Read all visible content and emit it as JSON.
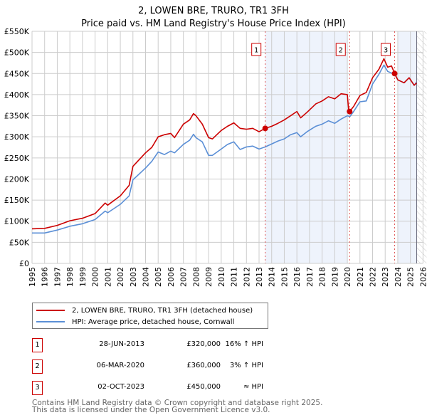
{
  "title": "2, LOWEN BRE, TRURO, TR1 3FH",
  "subtitle": "Price paid vs. HM Land Registry's House Price Index (HPI)",
  "chart_data": {
    "type": "line",
    "title": "2, LOWEN BRE, TRURO, TR1 3FH",
    "subtitle": "Price paid vs. HM Land Registry's House Price Index (HPI)",
    "xlim": [
      1995,
      2026
    ],
    "ylim": [
      0,
      550000
    ],
    "y_ticks": [
      0,
      50000,
      100000,
      150000,
      200000,
      250000,
      300000,
      350000,
      400000,
      450000,
      500000,
      550000
    ],
    "y_tick_labels": [
      "£0",
      "£50K",
      "£100K",
      "£150K",
      "£200K",
      "£250K",
      "£300K",
      "£350K",
      "£400K",
      "£450K",
      "£500K",
      "£550K"
    ],
    "x_ticks": [
      1995,
      1996,
      1997,
      1998,
      1999,
      2000,
      2001,
      2002,
      2003,
      2004,
      2005,
      2006,
      2007,
      2008,
      2009,
      2010,
      2011,
      2012,
      2013,
      2014,
      2015,
      2016,
      2017,
      2018,
      2019,
      2020,
      2021,
      2022,
      2023,
      2024,
      2025,
      2026
    ],
    "grid": true,
    "shaded_ranges": [
      [
        2013.49,
        2020.0
      ],
      [
        2024.0,
        2025.5
      ]
    ],
    "hatched_range": [
      2025.5,
      2026
    ],
    "series": [
      {
        "name": "2, LOWEN BRE, TRURO, TR1 3FH (detached house)",
        "color": "#cc0000",
        "x": [
          1995,
          1996,
          1997,
          1998,
          1999,
          2000,
          2000.8,
          2001,
          2002,
          2002.7,
          2003,
          2004,
          2004.5,
          2005,
          2005.5,
          2006,
          2006.3,
          2007,
          2007.5,
          2007.8,
          2008,
          2008.5,
          2009,
          2009.3,
          2010,
          2010.5,
          2011,
          2011.5,
          2012,
          2012.5,
          2013,
          2013.49,
          2014,
          2014.5,
          2015,
          2015.5,
          2016,
          2016.3,
          2016.8,
          2017.5,
          2018,
          2018.5,
          2019,
          2019.5,
          2020.0,
          2020.1,
          2020.18,
          2020.5,
          2021,
          2021.5,
          2022,
          2022.5,
          2022.9,
          2023.2,
          2023.5,
          2023.75,
          2024,
          2024.5,
          2024.9,
          2025.3,
          2025.5
        ],
        "y": [
          82000,
          83000,
          90000,
          101000,
          107000,
          118000,
          143000,
          138000,
          160000,
          185000,
          230000,
          262000,
          275000,
          300000,
          305000,
          308000,
          298000,
          330000,
          340000,
          355000,
          350000,
          330000,
          298000,
          295000,
          315000,
          325000,
          333000,
          320000,
          318000,
          320000,
          312000,
          320000,
          325000,
          332000,
          340000,
          350000,
          360000,
          345000,
          358000,
          378000,
          385000,
          395000,
          390000,
          402000,
          400000,
          365000,
          360000,
          372000,
          398000,
          405000,
          440000,
          460000,
          485000,
          465000,
          468000,
          450000,
          435000,
          428000,
          440000,
          422000,
          428000
        ]
      },
      {
        "name": "HPI: Average price, detached house, Cornwall",
        "color": "#5b8fd6",
        "x": [
          1995,
          1996,
          1997,
          1998,
          1999,
          2000,
          2000.8,
          2001,
          2002,
          2002.7,
          2003,
          2004,
          2004.5,
          2005,
          2005.5,
          2006,
          2006.3,
          2007,
          2007.5,
          2007.8,
          2008,
          2008.5,
          2009,
          2009.3,
          2010,
          2010.5,
          2011,
          2011.5,
          2012,
          2012.5,
          2013,
          2013.49,
          2014,
          2014.5,
          2015,
          2015.5,
          2016,
          2016.3,
          2016.8,
          2017.5,
          2018,
          2018.5,
          2019,
          2019.5,
          2020.0,
          2020.2,
          2020.5,
          2021,
          2021.5,
          2022,
          2022.5,
          2022.9,
          2023.2,
          2023.75,
          2024,
          2024.5,
          2024.9,
          2025.3,
          2025.5
        ],
        "y": [
          72000,
          72000,
          79000,
          88000,
          94000,
          104000,
          124000,
          120000,
          140000,
          160000,
          198000,
          226000,
          242000,
          264000,
          258000,
          266000,
          262000,
          282000,
          292000,
          306000,
          298000,
          288000,
          256000,
          256000,
          271000,
          282000,
          288000,
          270000,
          276000,
          278000,
          271000,
          276000,
          283000,
          290000,
          295000,
          305000,
          310000,
          300000,
          312000,
          325000,
          330000,
          338000,
          332000,
          342000,
          350000,
          348000,
          360000,
          383000,
          385000,
          425000,
          448000,
          470000,
          455000,
          448000,
          435000,
          428000,
          440000,
          422000,
          430000
        ]
      }
    ],
    "sales": [
      {
        "label": "1",
        "x": 2013.49,
        "y": 320000
      },
      {
        "label": "2",
        "x": 2020.18,
        "y": 360000
      },
      {
        "label": "3",
        "x": 2023.75,
        "y": 450000
      }
    ]
  },
  "legend": [
    {
      "label": "2, LOWEN BRE, TRURO, TR1 3FH (detached house)",
      "color": "#cc0000"
    },
    {
      "label": "HPI: Average price, detached house, Cornwall",
      "color": "#5b8fd6"
    }
  ],
  "transactions": [
    {
      "num": "1",
      "date": "28-JUN-2013",
      "price": "£320,000",
      "hpi": "16% ↑ HPI"
    },
    {
      "num": "2",
      "date": "06-MAR-2020",
      "price": "£360,000",
      "hpi": "3% ↑ HPI"
    },
    {
      "num": "3",
      "date": "02-OCT-2023",
      "price": "£450,000",
      "hpi": "≈ HPI"
    }
  ],
  "footer": [
    "Contains HM Land Registry data © Crown copyright and database right 2025.",
    "This data is licensed under the Open Government Licence v3.0."
  ]
}
